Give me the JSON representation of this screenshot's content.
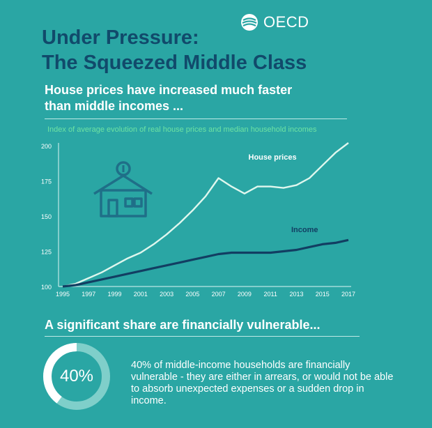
{
  "brand": {
    "logo_text": "OECD"
  },
  "header": {
    "title_line1": "Under Pressure:",
    "title_line2": "The Squeezed Middle Class"
  },
  "section1": {
    "heading_line1": "House prices have increased much faster",
    "heading_line2": "than middle incomes ...",
    "chart_caption": "Index of average evolution of real house prices and median household incomes"
  },
  "chart_data": {
    "type": "line",
    "title": "Index of average evolution of real house prices and median household incomes",
    "xlabel": "",
    "ylabel": "",
    "x": [
      1995,
      1996,
      1997,
      1998,
      1999,
      2000,
      2001,
      2002,
      2003,
      2004,
      2005,
      2006,
      2007,
      2008,
      2009,
      2010,
      2011,
      2012,
      2013,
      2014,
      2015,
      2016,
      2017
    ],
    "xticks": [
      "1995",
      "1997",
      "1999",
      "2001",
      "2003",
      "2005",
      "2007",
      "2009",
      "2011",
      "2013",
      "2015",
      "2017"
    ],
    "yticks": [
      "100",
      "125",
      "150",
      "175",
      "200"
    ],
    "ylim": [
      100,
      200
    ],
    "xlim": [
      1995,
      2017
    ],
    "grid": false,
    "series": [
      {
        "name": "House prices",
        "values": [
          100,
          102,
          106,
          110,
          115,
          120,
          124,
          130,
          137,
          145,
          154,
          164,
          177,
          171,
          166,
          171,
          171,
          170,
          172,
          177,
          186,
          195,
          202
        ]
      },
      {
        "name": "Income",
        "values": [
          100,
          101,
          103,
          105,
          107,
          109,
          111,
          113,
          115,
          117,
          119,
          121,
          123,
          124,
          124,
          124,
          124,
          125,
          126,
          128,
          130,
          131,
          133
        ]
      }
    ],
    "colors": {
      "house": "#dff7ee",
      "income": "#123e62",
      "axis": "#dff5f3",
      "tick": "#ffffff"
    }
  },
  "section2": {
    "heading": "A significant share are financially vulnerable...",
    "stat_value": "40%",
    "stat_fraction": 0.4,
    "description": "40% of middle-income households are financially vulnerable - they are either in arrears, or would not be able to absorb unexpected expenses or a sudden drop in income."
  },
  "colors": {
    "background": "#2aa6a4",
    "title": "#114a6b",
    "caption": "#6ee3a3",
    "donut_track": "#7fcfca",
    "donut_fill": "#ffffff"
  }
}
